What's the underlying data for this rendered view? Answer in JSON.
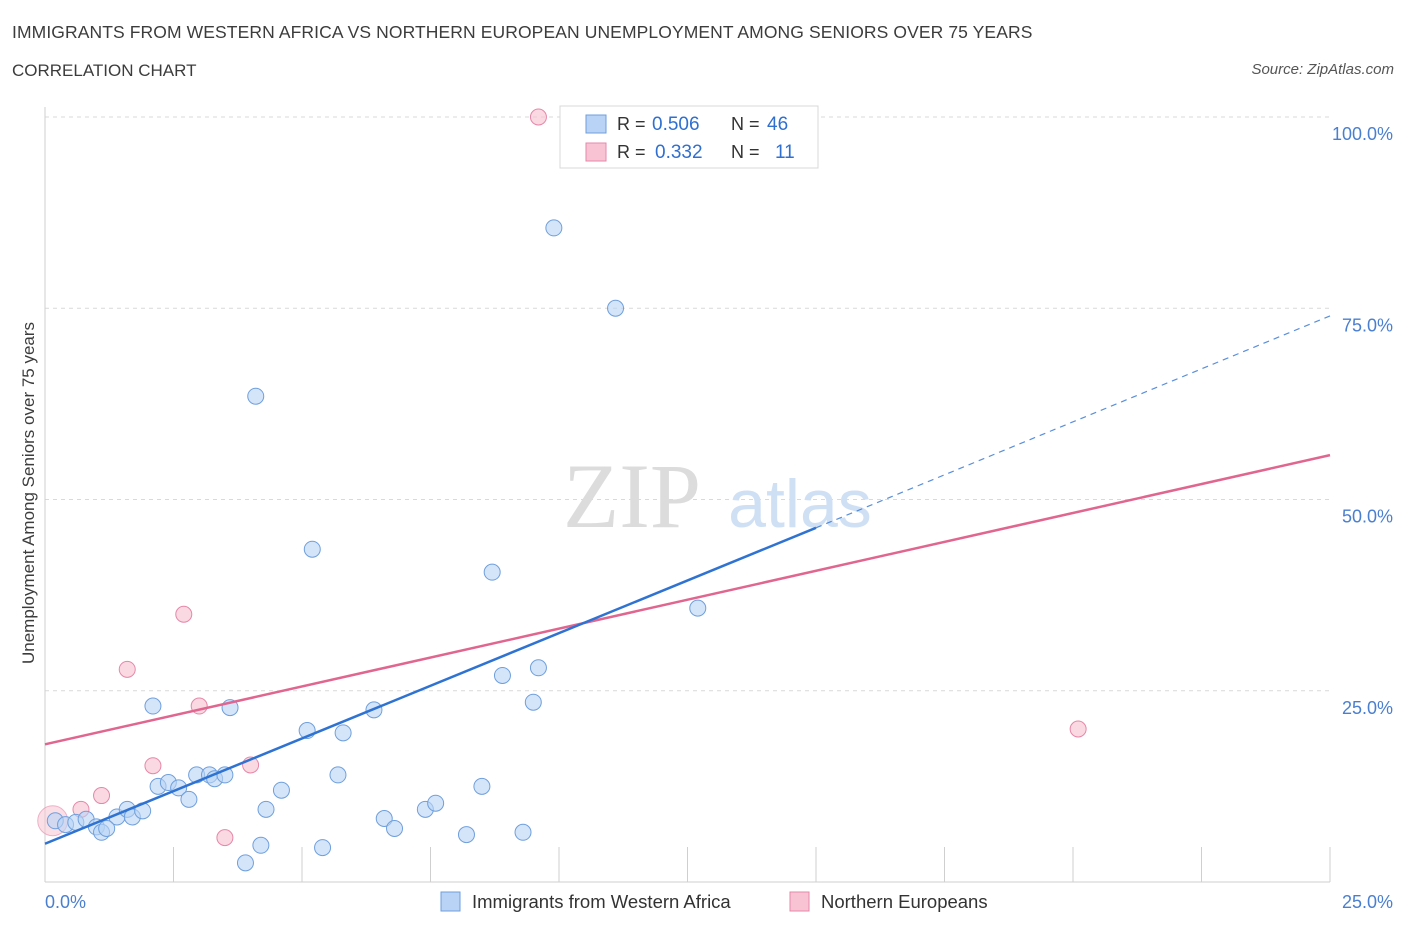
{
  "header": {
    "title": "IMMIGRANTS FROM WESTERN AFRICA VS NORTHERN EUROPEAN UNEMPLOYMENT AMONG SENIORS OVER 75 YEARS",
    "subtitle": "CORRELATION CHART",
    "source": "Source: ZipAtlas.com"
  },
  "watermark": {
    "zip": "ZIP",
    "atlas": "atlas"
  },
  "colors": {
    "blue_fill": "#b8d3f5",
    "blue_stroke": "#6f9fdc",
    "blue_line": "#2f73d2",
    "pink_fill": "#f8c4d4",
    "pink_stroke": "#e687a8",
    "pink_line": "#e06690",
    "axis_text": "#4a7fd0",
    "grid": "#d9d9d9"
  },
  "legend_top": {
    "rows": [
      {
        "r_label": "R =",
        "r_value": "0.506",
        "n_label": "N =",
        "n_value": "46",
        "series": "blue"
      },
      {
        "r_label": "R =",
        "r_value": "0.332",
        "n_label": "N =",
        "n_value": "11",
        "series": "pink"
      }
    ]
  },
  "chart_data": {
    "type": "scatter",
    "title": "IMMIGRANTS FROM WESTERN AFRICA VS NORTHERN EUROPEAN UNEMPLOYMENT AMONG SENIORS OVER 75 YEARS",
    "subtitle": "CORRELATION CHART",
    "xlabel": "",
    "ylabel": "Unemployment Among Seniors over 75 years",
    "xlim": [
      0,
      25
    ],
    "ylim": [
      0,
      100
    ],
    "x_tick_labels": [
      "0.0%",
      "25.0%"
    ],
    "y_tick_labels": [
      "25.0%",
      "50.0%",
      "75.0%",
      "100.0%"
    ],
    "y_ticks": [
      25,
      50,
      75,
      100
    ],
    "grid": true,
    "legend_position": "bottom",
    "series": [
      {
        "name": "Immigrants from Western Africa",
        "color": "blue",
        "R": 0.506,
        "N": 46,
        "points": [
          [
            0.2,
            8.0
          ],
          [
            0.4,
            7.5
          ],
          [
            0.6,
            7.8
          ],
          [
            0.8,
            8.2
          ],
          [
            1.0,
            7.2
          ],
          [
            1.1,
            6.5
          ],
          [
            1.4,
            8.5
          ],
          [
            1.6,
            9.5
          ],
          [
            1.7,
            8.5
          ],
          [
            1.9,
            9.3
          ],
          [
            2.1,
            23.0
          ],
          [
            2.2,
            12.5
          ],
          [
            2.4,
            13.0
          ],
          [
            2.6,
            12.3
          ],
          [
            2.8,
            10.8
          ],
          [
            2.95,
            14.0
          ],
          [
            3.2,
            14.0
          ],
          [
            3.3,
            13.5
          ],
          [
            3.5,
            14.0
          ],
          [
            3.6,
            22.8
          ],
          [
            3.9,
            2.5
          ],
          [
            4.1,
            63.5
          ],
          [
            4.2,
            4.8
          ],
          [
            4.3,
            9.5
          ],
          [
            4.6,
            12.0
          ],
          [
            5.1,
            19.8
          ],
          [
            5.2,
            43.5
          ],
          [
            5.4,
            4.5
          ],
          [
            5.7,
            14.0
          ],
          [
            5.8,
            19.5
          ],
          [
            6.4,
            22.5
          ],
          [
            6.6,
            8.3
          ],
          [
            6.8,
            7.0
          ],
          [
            7.4,
            9.5
          ],
          [
            7.6,
            10.3
          ],
          [
            8.2,
            6.2
          ],
          [
            8.5,
            12.5
          ],
          [
            8.7,
            40.5
          ],
          [
            8.9,
            27.0
          ],
          [
            9.3,
            6.5
          ],
          [
            9.5,
            23.5
          ],
          [
            9.6,
            28.0
          ],
          [
            9.9,
            85.5
          ],
          [
            11.1,
            75.0
          ],
          [
            12.7,
            35.8
          ],
          [
            1.2,
            7.0
          ]
        ],
        "trendline": {
          "x": [
            0,
            15
          ],
          "y": [
            5.0,
            46.3
          ],
          "dashed_extension": {
            "x": [
              15,
              25
            ],
            "y": [
              46.3,
              74.0
            ]
          }
        }
      },
      {
        "name": "Northern Europeans",
        "color": "pink",
        "R": 0.332,
        "N": 11,
        "points": [
          [
            0.15,
            8.0
          ],
          [
            0.7,
            9.5
          ],
          [
            1.1,
            11.3
          ],
          [
            1.6,
            27.8
          ],
          [
            2.1,
            15.2
          ],
          [
            2.7,
            35.0
          ],
          [
            3.0,
            23.0
          ],
          [
            3.5,
            5.8
          ],
          [
            4.0,
            15.3
          ],
          [
            9.6,
            100.0
          ],
          [
            20.1,
            20.0
          ]
        ],
        "trendline": {
          "x": [
            0,
            25
          ],
          "y": [
            18.0,
            55.8
          ]
        }
      }
    ]
  },
  "legend_bottom": {
    "items": [
      {
        "label": "Immigrants from Western Africa",
        "series": "blue"
      },
      {
        "label": "Northern Europeans",
        "series": "pink"
      }
    ]
  }
}
